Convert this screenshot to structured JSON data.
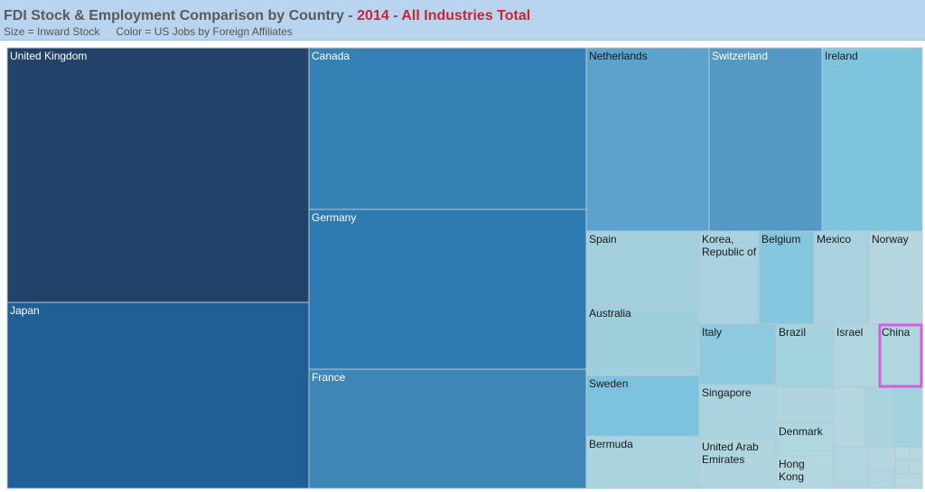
{
  "header": {
    "title_main": "FDI Stock & Employment Comparison by Country",
    "sep1": " - ",
    "year": "2014",
    "sep2": " - ",
    "industry": "All Industries Total",
    "size_legend": "Size = Inward Stock",
    "color_legend": "Color = US Jobs by Foreign Affiliates"
  },
  "colors": {
    "header_bg": "#b9d4ef",
    "title_text": "#5a5a5a",
    "title_accent": "#c7253a",
    "highlight_border": "#d65ce0",
    "cell_border": "#b8c7d3"
  },
  "chart_data": {
    "type": "treemap",
    "size_measure": "Inward Stock",
    "color_measure": "US Jobs by Foreign Affiliates",
    "highlighted": "China",
    "nodes": [
      {
        "label": "United Kingdom",
        "color": "#23426a"
      },
      {
        "label": "Japan",
        "color": "#205f96"
      },
      {
        "label": "Canada",
        "color": "#3580b4"
      },
      {
        "label": "Germany",
        "color": "#2e7bb4"
      },
      {
        "label": "France",
        "color": "#3e86b6"
      },
      {
        "label": "Netherlands",
        "color": "#5ba3cc"
      },
      {
        "label": "Switzerland",
        "color": "#5499c5"
      },
      {
        "label": "Ireland",
        "color": "#7ec4dd"
      },
      {
        "label": "Spain",
        "color": "#a3d0dc"
      },
      {
        "label": "Korea, Republic of",
        "color": "#a8d2df"
      },
      {
        "label": "Belgium",
        "color": "#84c7de"
      },
      {
        "label": "Mexico",
        "color": "#a8d2df"
      },
      {
        "label": "Norway",
        "color": "#b5d6df"
      },
      {
        "label": "Australia",
        "color": "#9fcfdd"
      },
      {
        "label": "Italy",
        "color": "#8dcae0"
      },
      {
        "label": "Brazil",
        "color": "#a3d3df"
      },
      {
        "label": "Israel",
        "color": "#b0d7df"
      },
      {
        "label": "China",
        "color": "#b0d7df"
      },
      {
        "label": "Sweden",
        "color": "#7dc3df"
      },
      {
        "label": "Singapore",
        "color": "#a9d4df"
      },
      {
        "label": "Bermuda",
        "color": "#a9d4df"
      },
      {
        "label": "United Arab Emirates",
        "color": "#afd6df"
      },
      {
        "label": "Denmark",
        "color": "#aed7df"
      },
      {
        "label": "Hong Kong",
        "color": "#b2d7df"
      },
      {
        "label": "",
        "color": "#afd5de"
      },
      {
        "label": "",
        "color": "#b3d6df"
      },
      {
        "label": "",
        "color": "#a9d3de"
      },
      {
        "label": "",
        "color": "#a3d1de"
      },
      {
        "label": "",
        "color": "#b2d6df"
      },
      {
        "label": "",
        "color": "#b3d6df"
      },
      {
        "label": "",
        "color": "#b6d8df"
      },
      {
        "label": "",
        "color": "#b0d6df"
      },
      {
        "label": "",
        "color": "#b6d8df"
      },
      {
        "label": "",
        "color": "#b6d8df"
      },
      {
        "label": "",
        "color": "#b3d6df"
      },
      {
        "label": "",
        "color": "#b6d8df"
      },
      {
        "label": "",
        "color": "#b6d8df"
      }
    ]
  }
}
